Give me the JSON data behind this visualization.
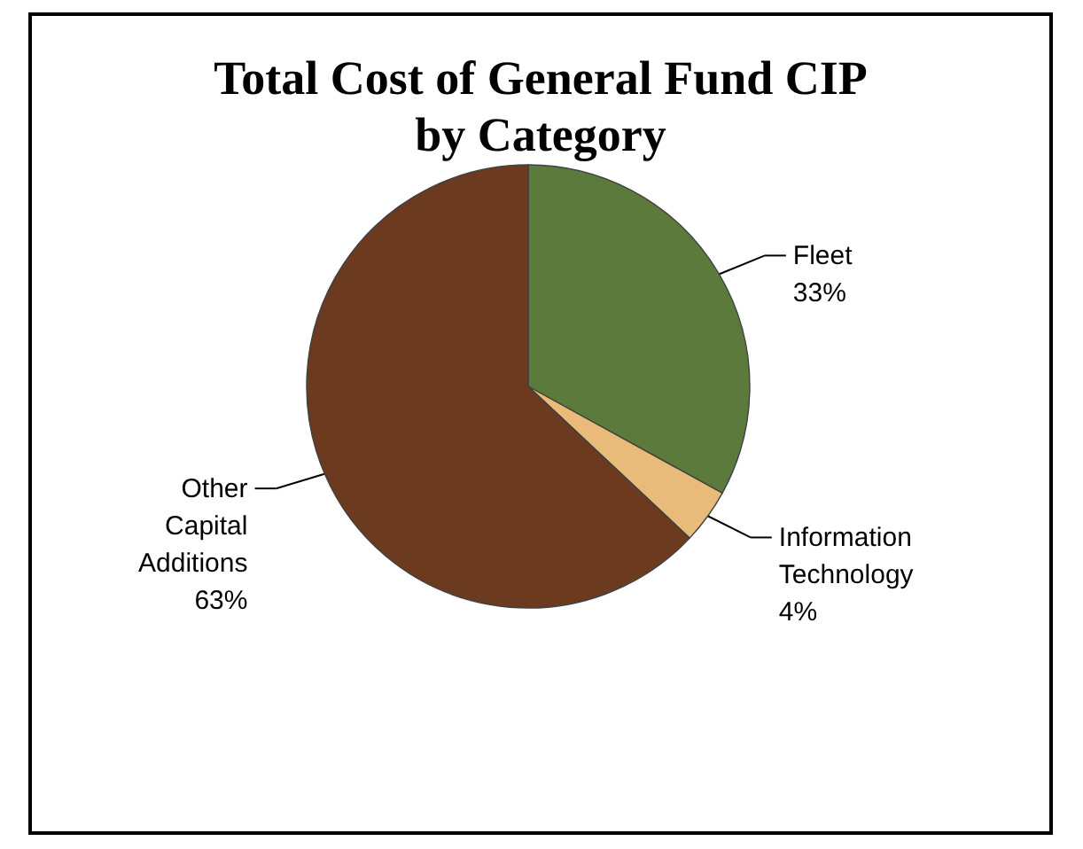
{
  "chart_data": {
    "type": "pie",
    "title": "Total Cost of General Fund CIP by Category",
    "categories": [
      "Fleet",
      "Information Technology",
      "Other Capital Additions"
    ],
    "values": [
      33,
      4,
      63
    ],
    "colors": [
      "#5b7a3c",
      "#e9bb7a",
      "#6b3a1f"
    ],
    "value_labels": [
      "33%",
      "4%",
      "63%"
    ],
    "legend": false
  }
}
